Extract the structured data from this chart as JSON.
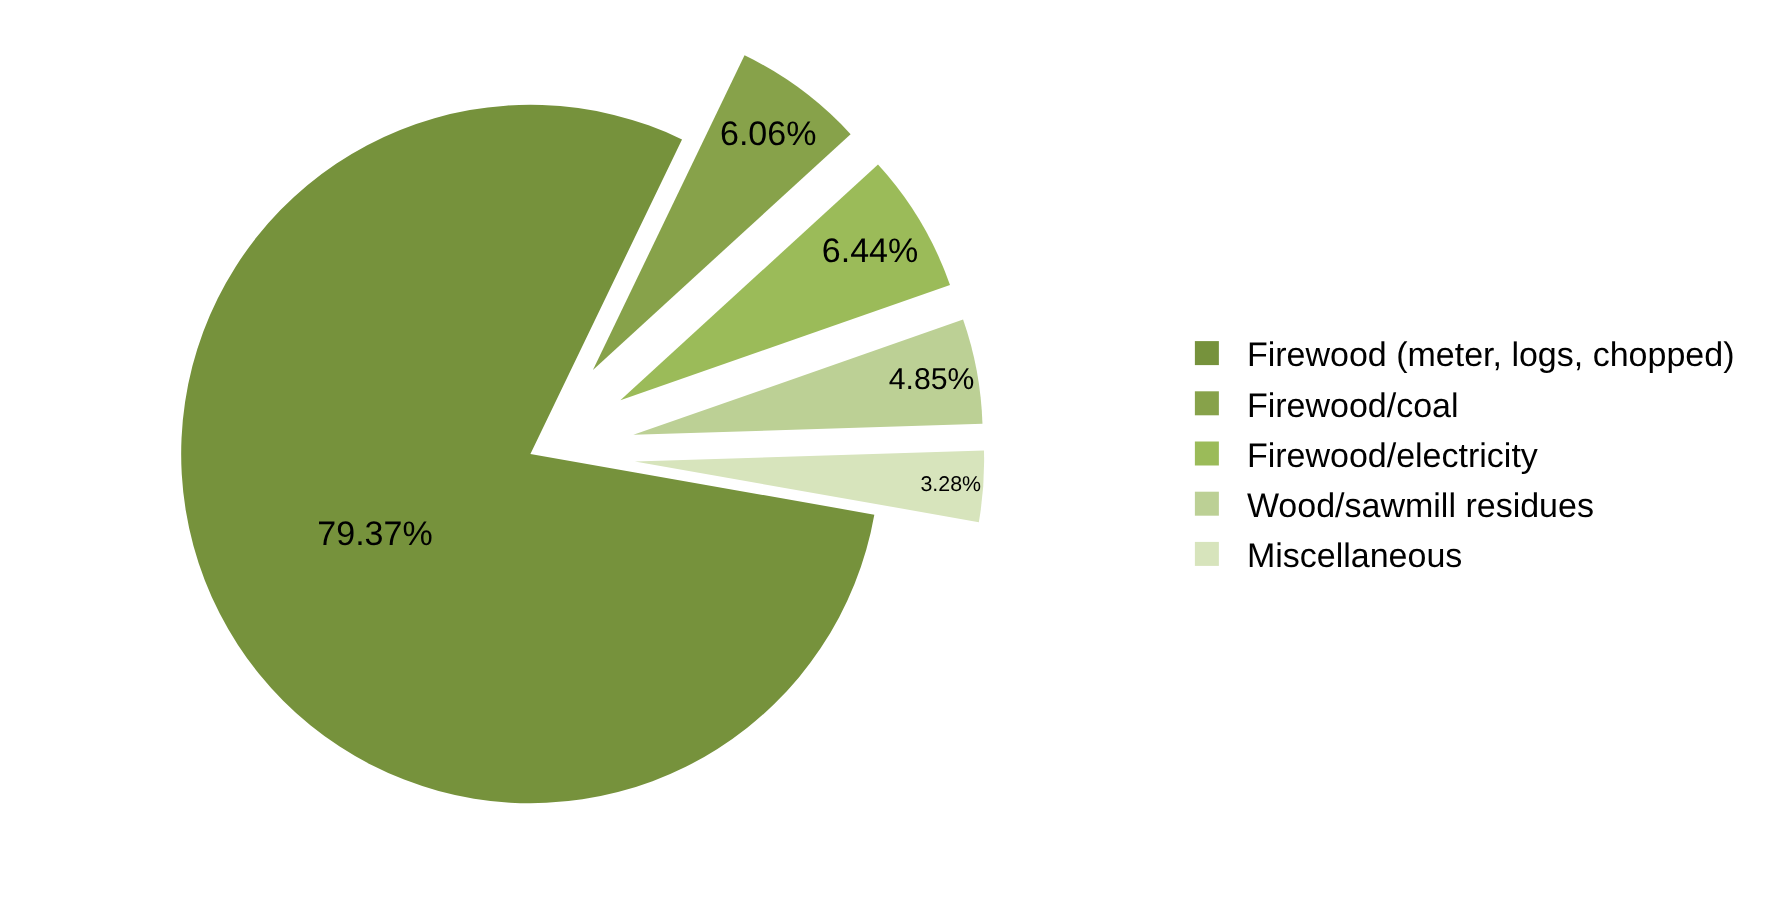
{
  "chart_data": {
    "type": "pie",
    "categories": [
      "Firewood (meter, logs, chopped)",
      "Firewood/coal",
      "Firewood/electricity",
      "Wood/sawmill residues",
      "Miscellaneous"
    ],
    "values": [
      79.37,
      6.06,
      6.44,
      4.85,
      3.28
    ],
    "value_labels": [
      "79.37%",
      "6.06%",
      "6.44%",
      "4.85%",
      "3.28%"
    ],
    "colors": [
      "#76923c",
      "#87a24a",
      "#9bbb59",
      "#bcd095",
      "#d7e4bc"
    ],
    "legend": "right"
  }
}
